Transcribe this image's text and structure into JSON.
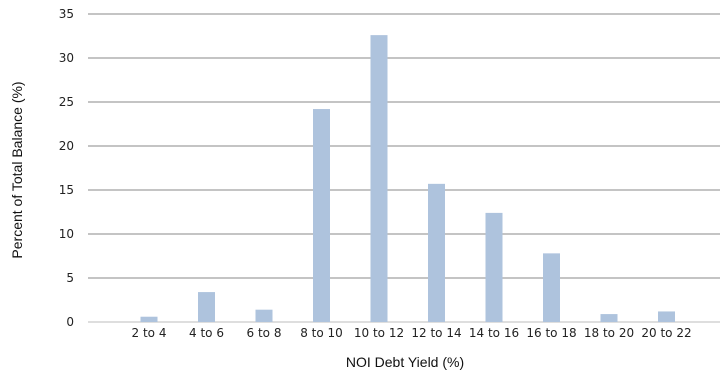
{
  "chart_data": {
    "type": "bar",
    "categories": [
      "2 to 4",
      "4 to 6",
      "6 to 8",
      "8 to 10",
      "10 to 12",
      "12 to 14",
      "14 to 16",
      "16 to 18",
      "18 to 20",
      "20 to 22"
    ],
    "values": [
      0.6,
      3.4,
      1.4,
      24.2,
      32.6,
      15.7,
      12.4,
      7.8,
      0.9,
      1.2
    ],
    "title": "",
    "xlabel": "NOI Debt Yield (%)",
    "ylabel": "Percent of Total Balance (%)",
    "ylim": [
      0,
      35
    ],
    "yticks": [
      0,
      5,
      10,
      15,
      20,
      25,
      30,
      35
    ],
    "grid": true,
    "bar_color": "#aec3dd",
    "grid_color": "#8a8a8a"
  }
}
